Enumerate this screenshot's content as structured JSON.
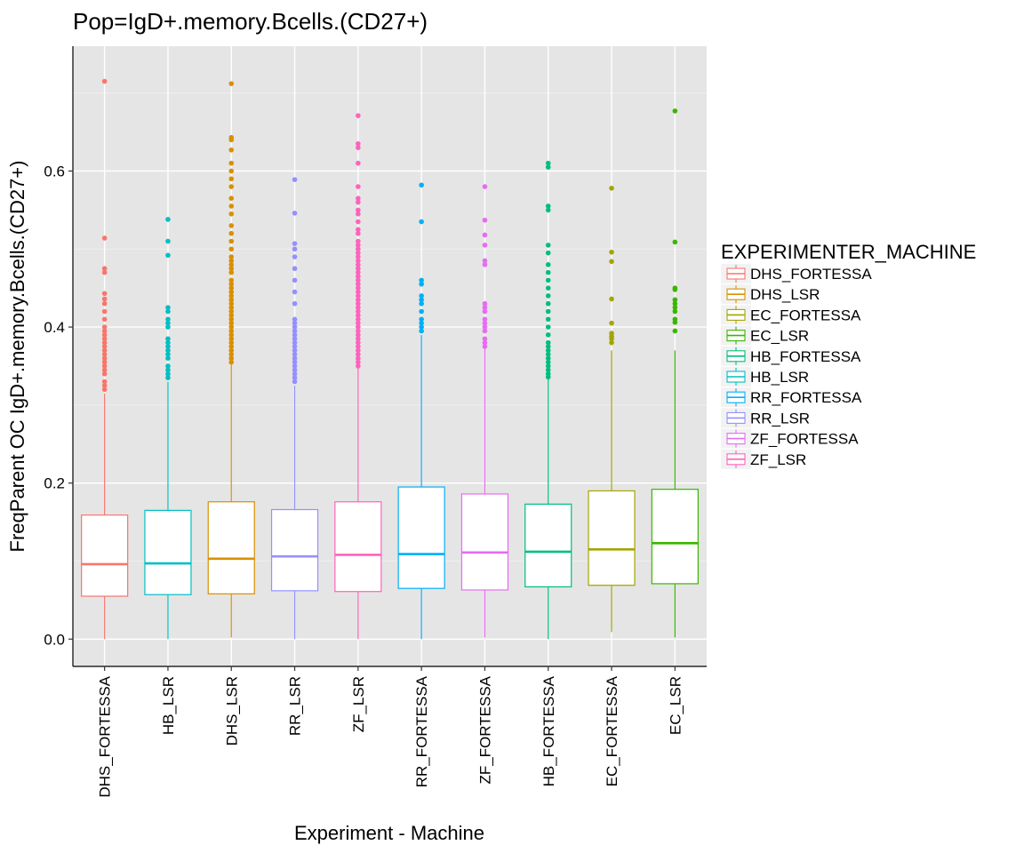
{
  "chart_data": {
    "type": "boxplot",
    "title": "Pop=IgD+.memory.Bcells.(CD27+)",
    "xlabel": "Experiment - Machine",
    "ylabel": "FreqParent OC  IgD+.memory.Bcells.(CD27+)",
    "ylim": [
      -0.035,
      0.76
    ],
    "yticks": [
      0.0,
      0.2,
      0.4,
      0.6
    ],
    "ytick_labels": [
      "0.0",
      "0.2",
      "0.4",
      "0.6"
    ],
    "grid": true,
    "legend": {
      "title": "EXPERIMENTER_MACHINE",
      "placement": "right",
      "entries": [
        "DHS_FORTESSA",
        "DHS_LSR",
        "EC_FORTESSA",
        "EC_LSR",
        "HB_FORTESSA",
        "HB_LSR",
        "RR_FORTESSA",
        "RR_LSR",
        "ZF_FORTESSA",
        "ZF_LSR"
      ],
      "colors": [
        "#F8766D",
        "#D89000",
        "#A3A500",
        "#39B600",
        "#00BF7D",
        "#00BFC4",
        "#00B0F6",
        "#9590FF",
        "#E76BF3",
        "#FF62BC"
      ]
    },
    "categories": [
      "DHS_FORTESSA",
      "HB_LSR",
      "DHS_LSR",
      "RR_LSR",
      "ZF_LSR",
      "RR_FORTESSA",
      "ZF_FORTESSA",
      "HB_FORTESSA",
      "EC_FORTESSA",
      "EC_LSR"
    ],
    "boxes": [
      {
        "name": "DHS_FORTESSA",
        "color": "#F8766D",
        "min": 0.0,
        "q1": 0.055,
        "median": 0.096,
        "q3": 0.159,
        "max": 0.315,
        "outliers": [
          0.715,
          0.514,
          0.475,
          0.47,
          0.443,
          0.436,
          0.43,
          0.42,
          0.41,
          0.4,
          0.395,
          0.39,
          0.385,
          0.38,
          0.375,
          0.37,
          0.365,
          0.36,
          0.355,
          0.35,
          0.345,
          0.34,
          0.33,
          0.325,
          0.32
        ]
      },
      {
        "name": "HB_LSR",
        "color": "#00BFC4",
        "min": 0.0,
        "q1": 0.057,
        "median": 0.097,
        "q3": 0.165,
        "max": 0.33,
        "outliers": [
          0.538,
          0.51,
          0.492,
          0.425,
          0.42,
          0.41,
          0.405,
          0.4,
          0.385,
          0.38,
          0.375,
          0.37,
          0.365,
          0.36,
          0.35,
          0.345,
          0.34,
          0.335
        ]
      },
      {
        "name": "DHS_LSR",
        "color": "#D89000",
        "min": 0.002,
        "q1": 0.058,
        "median": 0.103,
        "q3": 0.176,
        "max": 0.352,
        "outliers": [
          0.712,
          0.643,
          0.64,
          0.627,
          0.61,
          0.6,
          0.59,
          0.58,
          0.565,
          0.555,
          0.545,
          0.53,
          0.52,
          0.51,
          0.5,
          0.49,
          0.485,
          0.48,
          0.475,
          0.47,
          0.46,
          0.455,
          0.45,
          0.445,
          0.44,
          0.435,
          0.43,
          0.425,
          0.42,
          0.415,
          0.41,
          0.405,
          0.4,
          0.395,
          0.39,
          0.385,
          0.38,
          0.375,
          0.37,
          0.365,
          0.36,
          0.355
        ]
      },
      {
        "name": "RR_LSR",
        "color": "#9590FF",
        "min": 0.0,
        "q1": 0.062,
        "median": 0.106,
        "q3": 0.166,
        "max": 0.325,
        "outliers": [
          0.589,
          0.546,
          0.507,
          0.5,
          0.49,
          0.475,
          0.46,
          0.445,
          0.43,
          0.41,
          0.405,
          0.4,
          0.395,
          0.39,
          0.385,
          0.38,
          0.375,
          0.37,
          0.365,
          0.36,
          0.355,
          0.35,
          0.345,
          0.34,
          0.335,
          0.33
        ]
      },
      {
        "name": "ZF_LSR",
        "color": "#FF62BC",
        "min": 0.0,
        "q1": 0.061,
        "median": 0.108,
        "q3": 0.176,
        "max": 0.348,
        "outliers": [
          0.671,
          0.635,
          0.63,
          0.61,
          0.58,
          0.565,
          0.56,
          0.55,
          0.545,
          0.535,
          0.525,
          0.52,
          0.51,
          0.505,
          0.5,
          0.495,
          0.49,
          0.485,
          0.48,
          0.475,
          0.47,
          0.465,
          0.46,
          0.455,
          0.45,
          0.445,
          0.44,
          0.435,
          0.43,
          0.425,
          0.42,
          0.415,
          0.41,
          0.405,
          0.4,
          0.395,
          0.39,
          0.385,
          0.38,
          0.375,
          0.37,
          0.365,
          0.36,
          0.355,
          0.35
        ]
      },
      {
        "name": "RR_FORTESSA",
        "color": "#00B0F6",
        "min": 0.0,
        "q1": 0.065,
        "median": 0.109,
        "q3": 0.195,
        "max": 0.39,
        "outliers": [
          0.582,
          0.535,
          0.46,
          0.455,
          0.44,
          0.435,
          0.43,
          0.42,
          0.41,
          0.405,
          0.4,
          0.395
        ]
      },
      {
        "name": "ZF_FORTESSA",
        "color": "#E76BF3",
        "min": 0.002,
        "q1": 0.063,
        "median": 0.111,
        "q3": 0.186,
        "max": 0.372,
        "outliers": [
          0.58,
          0.537,
          0.518,
          0.505,
          0.485,
          0.48,
          0.43,
          0.425,
          0.42,
          0.41,
          0.405,
          0.4,
          0.395,
          0.385,
          0.38,
          0.375
        ]
      },
      {
        "name": "HB_FORTESSA",
        "color": "#00BF7D",
        "min": 0.0,
        "q1": 0.067,
        "median": 0.112,
        "q3": 0.173,
        "max": 0.334,
        "outliers": [
          0.61,
          0.605,
          0.555,
          0.55,
          0.505,
          0.495,
          0.48,
          0.47,
          0.46,
          0.45,
          0.44,
          0.43,
          0.42,
          0.41,
          0.4,
          0.39,
          0.38,
          0.375,
          0.37,
          0.365,
          0.36,
          0.355,
          0.35,
          0.345,
          0.34,
          0.336
        ]
      },
      {
        "name": "EC_FORTESSA",
        "color": "#A3A500",
        "min": 0.009,
        "q1": 0.069,
        "median": 0.115,
        "q3": 0.19,
        "max": 0.37,
        "outliers": [
          0.578,
          0.496,
          0.484,
          0.436,
          0.405,
          0.392,
          0.388,
          0.385,
          0.38
        ]
      },
      {
        "name": "EC_LSR",
        "color": "#39B600",
        "min": 0.002,
        "q1": 0.071,
        "median": 0.123,
        "q3": 0.192,
        "max": 0.37,
        "outliers": [
          0.677,
          0.509,
          0.45,
          0.448,
          0.435,
          0.43,
          0.425,
          0.42,
          0.41,
          0.406,
          0.395
        ]
      }
    ]
  }
}
